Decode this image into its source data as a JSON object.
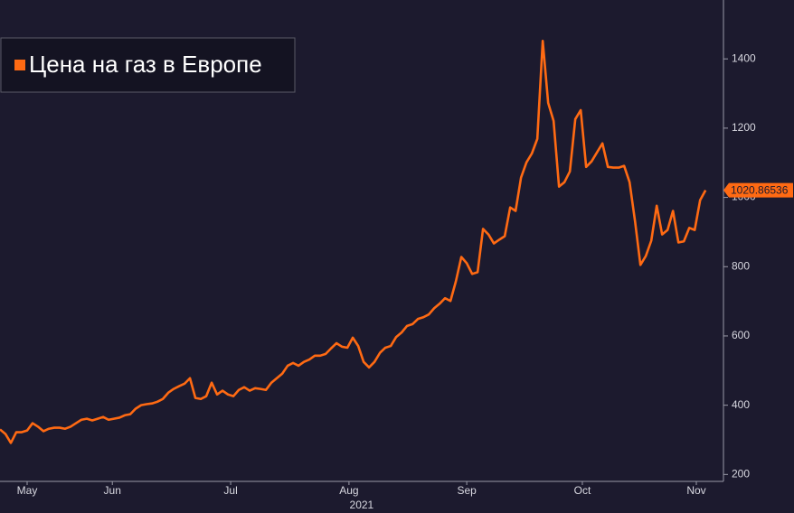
{
  "chart_data": {
    "type": "line",
    "series": [
      {
        "name": "Цена на газ в Европе",
        "color": "#ff6a13",
        "values": [
          330,
          317,
          291,
          322,
          322,
          327,
          348,
          338,
          325,
          332,
          335,
          335,
          332,
          338,
          348,
          358,
          361,
          356,
          361,
          366,
          358,
          361,
          364,
          371,
          374,
          390,
          400,
          403,
          405,
          410,
          418,
          436,
          447,
          455,
          462,
          478,
          421,
          418,
          426,
          465,
          431,
          442,
          431,
          426,
          444,
          452,
          442,
          449,
          447,
          444,
          465,
          478,
          491,
          514,
          522,
          514,
          525,
          532,
          543,
          543,
          548,
          564,
          579,
          569,
          566,
          595,
          571,
          525,
          509,
          525,
          551,
          566,
          571,
          597,
          610,
          629,
          634,
          649,
          654,
          662,
          680,
          693,
          709,
          701,
          758,
          828,
          810,
          779,
          784,
          909,
          893,
          867,
          878,
          888,
          971,
          961,
          1057,
          1101,
          1127,
          1169,
          1452,
          1273,
          1221,
          1031,
          1044,
          1075,
          1226,
          1252,
          1088,
          1104,
          1130,
          1156,
          1088,
          1086,
          1086,
          1091,
          1044,
          932,
          805,
          831,
          875,
          976,
          893,
          906,
          961,
          870,
          873,
          912,
          906,
          992,
          1020.86536
        ]
      }
    ],
    "x": [
      0,
      1,
      2,
      3,
      4,
      5,
      6,
      7,
      8,
      9,
      10,
      11,
      12,
      13,
      14,
      15,
      16,
      17,
      18,
      19,
      20,
      21,
      22,
      23,
      24,
      25,
      26,
      27,
      28,
      29,
      30,
      31,
      32,
      33,
      34,
      35,
      36,
      37,
      38,
      39,
      40,
      41,
      42,
      43,
      44,
      45,
      46,
      47,
      48,
      49,
      50,
      51,
      52,
      53,
      54,
      55,
      56,
      57,
      58,
      59,
      60,
      61,
      62,
      63,
      64,
      65,
      66,
      67,
      68,
      69,
      70,
      71,
      72,
      73,
      74,
      75,
      76,
      77,
      78,
      79,
      80,
      81,
      82,
      83,
      84,
      85,
      86,
      87,
      88,
      89,
      90,
      91,
      92,
      93,
      94,
      95,
      96,
      97,
      98,
      99,
      100,
      101,
      102,
      103,
      104,
      105,
      106,
      107,
      108,
      109,
      110,
      111,
      112,
      113,
      114,
      115,
      116,
      117,
      118,
      119,
      120,
      121,
      122,
      123,
      124,
      125,
      126,
      127,
      128,
      129,
      130
    ],
    "xlim": [
      0,
      133.3
    ],
    "xticks": [
      {
        "value": 5,
        "label": "May"
      },
      {
        "value": 20.7,
        "label": "Jun"
      },
      {
        "value": 42.5,
        "label": "Jul"
      },
      {
        "value": 64.3,
        "label": "Aug"
      },
      {
        "value": 86,
        "label": "Sep"
      },
      {
        "value": 107.3,
        "label": "Oct"
      },
      {
        "value": 128.3,
        "label": "Nov"
      }
    ],
    "year_label": "2021",
    "ylim": [
      180,
      1570
    ],
    "yticks": [
      200,
      400,
      600,
      800,
      1000,
      1200,
      1400
    ]
  }
}
